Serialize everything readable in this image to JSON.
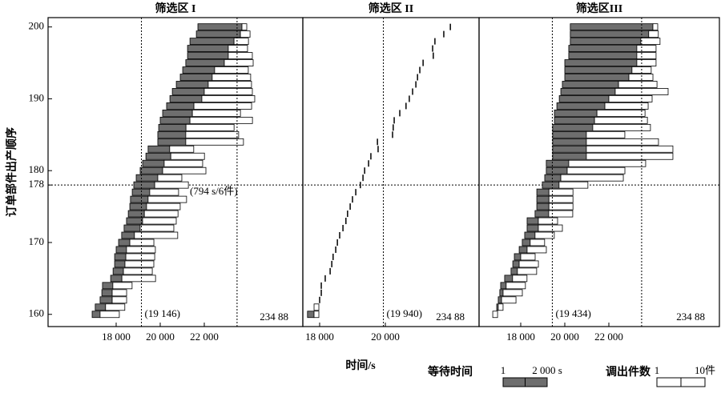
{
  "chart_data": {
    "type": "gantt",
    "y_label": "订单部件出产顺序",
    "x_label": "时间/s",
    "y": [
      160,
      161,
      162,
      163,
      164,
      165,
      166,
      167,
      168,
      169,
      170,
      171,
      172,
      173,
      174,
      175,
      176,
      177,
      178,
      179,
      180,
      181,
      182,
      183,
      184,
      185,
      186,
      187,
      188,
      189,
      190,
      191,
      192,
      193,
      194,
      195,
      196,
      197,
      198,
      199,
      200
    ],
    "ylim": [
      158.3,
      201.3
    ],
    "yticks": [
      160,
      170,
      178,
      180,
      190,
      200
    ],
    "hline": 178,
    "wait_color": "#6e6e6e",
    "items_color": "#ffffff",
    "panels": [
      {
        "title": "筛选区 I",
        "xlim": [
          14909,
          26473
        ],
        "xticks": [
          {
            "value": 18000,
            "label": "18 000"
          },
          {
            "value": 20000,
            "label": "20 000"
          },
          {
            "value": 22000,
            "label": "22 000"
          }
        ],
        "start": [
          16910,
          17050,
          17270,
          17350,
          17380,
          17750,
          17860,
          17930,
          17930,
          18000,
          18110,
          18250,
          18360,
          18470,
          18550,
          18620,
          18650,
          18730,
          18800,
          18910,
          19090,
          19200,
          19350,
          19450,
          19890,
          19890,
          19930,
          20000,
          20110,
          20290,
          20440,
          20550,
          20730,
          20910,
          21020,
          21160,
          21240,
          21240,
          21350,
          21640,
          21710
        ],
        "wait": [
          360,
          470,
          550,
          470,
          470,
          510,
          470,
          470,
          510,
          470,
          510,
          580,
          730,
          730,
          730,
          760,
          800,
          794,
          950,
          980,
          1020,
          980,
          1130,
          980,
          1270,
          1270,
          1240,
          1350,
          1350,
          1240,
          1450,
          1450,
          1450,
          1450,
          1450,
          1750,
          1850,
          1850,
          2000,
          2000,
          2000
        ],
        "items": [
          4,
          4,
          3,
          3,
          4,
          7,
          6,
          6,
          6,
          6,
          5,
          9,
          7,
          7,
          7,
          7,
          8,
          6,
          7,
          5,
          9,
          8,
          7,
          5,
          12,
          11,
          10,
          13,
          10,
          12,
          11,
          10,
          9,
          8,
          7,
          6,
          5,
          4,
          3,
          2,
          1
        ],
        "vlines": [
          {
            "value": 19146,
            "label": "(19 146)"
          },
          {
            "value": 23488,
            "label": "234 88"
          }
        ],
        "annotation": "(794 s/6件)"
      },
      {
        "title": "筛选区 II",
        "xlim": [
          17488,
          22854
        ],
        "xticks": [
          {
            "value": 18000,
            "label": "18 000"
          },
          {
            "value": 20000,
            "label": "20 000"
          }
        ],
        "start": [
          17630,
          17830,
          18000,
          18050,
          18050,
          18170,
          18320,
          18370,
          18410,
          18490,
          18540,
          18610,
          18710,
          18800,
          18850,
          18930,
          19000,
          19100,
          19240,
          19320,
          19370,
          19490,
          19560,
          19780,
          19760,
          20220,
          20240,
          20270,
          20440,
          20630,
          20730,
          20830,
          20930,
          20980,
          21050,
          21150,
          21460,
          21440,
          21510,
          21780,
          21980
        ],
        "wait": [
          200,
          0,
          0,
          0,
          0,
          0,
          0,
          0,
          0,
          0,
          0,
          0,
          0,
          0,
          0,
          0,
          0,
          0,
          0,
          0,
          0,
          0,
          0,
          0,
          0,
          0,
          0,
          0,
          0,
          0,
          0,
          0,
          0,
          0,
          0,
          0,
          0,
          0,
          0,
          0,
          0
        ],
        "items": [
          1,
          1,
          0,
          0,
          0,
          0,
          0,
          0,
          0,
          0,
          0,
          0,
          0,
          0,
          0,
          0,
          0,
          0,
          0,
          0,
          0,
          0,
          0,
          0,
          0,
          0,
          0,
          0,
          0,
          0,
          0,
          0,
          0,
          0,
          0,
          0,
          0,
          0,
          0,
          0,
          0
        ],
        "vlines": [
          {
            "value": 19940,
            "label": "(19 940)"
          },
          {
            "value": 23488,
            "label": "234 88"
          }
        ]
      },
      {
        "title": "筛选区III",
        "xlim": [
          16109,
          27018
        ],
        "xticks": [
          {
            "value": 18000,
            "label": "18 000"
          },
          {
            "value": 20000,
            "label": "20 000"
          },
          {
            "value": 22000,
            "label": "22 000"
          }
        ],
        "start": [
          16730,
          16910,
          16980,
          17050,
          17090,
          17270,
          17560,
          17640,
          17710,
          17930,
          18070,
          18180,
          18290,
          18290,
          18650,
          18730,
          18730,
          18730,
          18980,
          19090,
          19160,
          19160,
          19450,
          19450,
          19450,
          19450,
          19450,
          19530,
          19530,
          19640,
          19750,
          19820,
          19890,
          20000,
          20000,
          20000,
          20180,
          20180,
          20250,
          20250,
          20250
        ],
        "wait": [
          0,
          70,
          150,
          150,
          250,
          360,
          290,
          290,
          290,
          360,
          360,
          470,
          510,
          510,
          620,
          550,
          550,
          550,
          760,
          730,
          950,
          1020,
          1530,
          1530,
          1530,
          1530,
          1820,
          1820,
          1930,
          2180,
          2250,
          2470,
          2550,
          2910,
          3050,
          3270,
          3090,
          3090,
          3200,
          3560,
          3750
        ],
        "items": [
          1,
          1,
          3,
          4,
          4,
          3,
          4,
          4,
          3,
          4,
          3,
          4,
          5,
          4,
          5,
          5,
          5,
          5,
          6,
          13,
          12,
          16,
          18,
          18,
          15,
          8,
          12,
          11,
          10,
          9,
          9,
          11,
          8,
          5,
          4,
          4,
          4,
          4,
          4,
          2,
          1
        ],
        "vlines": [
          {
            "value": 19434,
            "label": "(19 434)"
          },
          {
            "value": 23488,
            "label": "234 88"
          }
        ]
      }
    ],
    "legend": {
      "wait": {
        "label": "等待时间",
        "ticks": [
          1,
          {
            "value": 2000,
            "label": "2 000 s"
          }
        ]
      },
      "items": {
        "label": "调出件数",
        "ticks": [
          1,
          {
            "value": 10,
            "label": "10件"
          }
        ]
      }
    }
  }
}
